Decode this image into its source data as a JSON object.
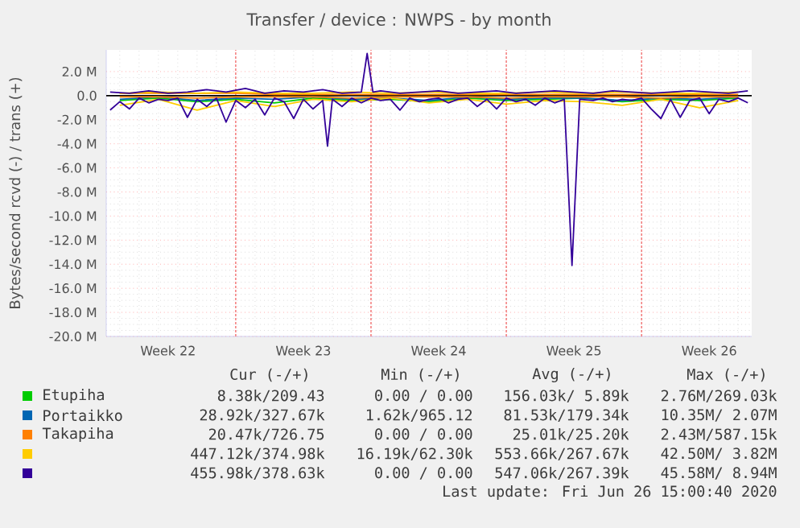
{
  "chart_data": {
    "type": "line",
    "title": "Transfer / device : NWPS - by month",
    "ylabel": "Bytes/second rcvd (-) / trans (+)",
    "xlim": [
      "2020-05-25T07:12",
      "2020-06-27T16:48"
    ],
    "ylim": [
      -20,
      3.8
    ],
    "xticks": [
      {
        "value": "2020-05-28T12:00",
        "label": "Week 22"
      },
      {
        "value": "2020-06-01",
        "label": null
      },
      {
        "value": "2020-06-04T12:00",
        "label": "Week 23"
      },
      {
        "value": "2020-06-08",
        "label": null
      },
      {
        "value": "2020-06-11T12:00",
        "label": "Week 24"
      },
      {
        "value": "2020-06-15",
        "label": null
      },
      {
        "value": "2020-06-18T12:00",
        "label": "Week 25"
      },
      {
        "value": "2020-06-22",
        "label": null
      },
      {
        "value": "2020-06-25T12:00",
        "label": "Week 26"
      }
    ],
    "yticks": [
      {
        "value": 2,
        "label": "2.0 M"
      },
      {
        "value": 0,
        "label": "0.0"
      },
      {
        "value": -2,
        "label": "-2.0 M"
      },
      {
        "value": -4,
        "label": "-4.0 M"
      },
      {
        "value": -6,
        "label": "-6.0 M"
      },
      {
        "value": -8,
        "label": "-8.0 M"
      },
      {
        "value": -10,
        "label": "-10.0 M"
      },
      {
        "value": -12,
        "label": "-12.0 M"
      },
      {
        "value": -14,
        "label": "-14.0 M"
      },
      {
        "value": -16,
        "label": "-16.0 M"
      },
      {
        "value": -18,
        "label": "-18.0 M"
      },
      {
        "value": -20,
        "label": "-20.0 M"
      }
    ],
    "grid": true,
    "legend": "bottom",
    "marker": "none",
    "line_style": "solid",
    "x": [
      "2020-05-26",
      "2020-05-28",
      "2020-05-30",
      "2020-06-01",
      "2020-06-03",
      "2020-06-05",
      "2020-06-07",
      "2020-06-09",
      "2020-06-11",
      "2020-06-13",
      "2020-06-15",
      "2020-06-17",
      "2020-06-19",
      "2020-06-21",
      "2020-06-23",
      "2020-06-25",
      "2020-06-27"
    ],
    "series": [
      {
        "name": "Etupiha",
        "color": "#00cc00",
        "values": [
          -0.4,
          -0.2,
          -0.5,
          -0.3,
          -0.6,
          -0.2,
          -0.4,
          -0.3,
          -0.5,
          -0.2,
          -0.4,
          -0.3,
          -0.2,
          -0.5,
          -0.3,
          -0.4,
          -0.2
        ]
      },
      {
        "name": "Portaikko",
        "color": "#0066b3",
        "values": [
          -0.3,
          -0.1,
          -0.4,
          -0.2,
          -0.3,
          -0.1,
          -0.3,
          -0.2,
          -0.4,
          -0.1,
          -0.3,
          -0.2,
          -0.2,
          -0.4,
          -0.2,
          -0.3,
          -0.1
        ]
      },
      {
        "name": "Takapiha",
        "color": "#ff8000",
        "values": [
          -0.1,
          -0.1,
          -0.2,
          -0.1,
          -0.1,
          -0.1,
          -0.2,
          -0.1,
          -0.1,
          -0.1,
          -0.2,
          -0.1,
          -0.1,
          -0.1,
          -0.2,
          -0.1,
          -0.1
        ]
      },
      {
        "color": "#ffcc00",
        "values": [
          -0.8,
          -0.3,
          -1.2,
          -0.4,
          -0.9,
          -0.3,
          -0.5,
          -0.2,
          -0.6,
          -0.3,
          -0.7,
          -0.4,
          -0.5,
          -0.8,
          -0.3,
          -1.0,
          -0.4
        ]
      },
      {
        "color": "#330099",
        "x": [
          "2020-05-25T12:00",
          "2020-05-26",
          "2020-05-26T12:00",
          "2020-05-27",
          "2020-05-27T12:00",
          "2020-05-28",
          "2020-05-28T12:00",
          "2020-05-29",
          "2020-05-29T12:00",
          "2020-05-30",
          "2020-05-30T12:00",
          "2020-05-31",
          "2020-05-31T12:00",
          "2020-06-01",
          "2020-06-01T12:00",
          "2020-06-02",
          "2020-06-02T12:00",
          "2020-06-03",
          "2020-06-03T12:00",
          "2020-06-04",
          "2020-06-04T12:00",
          "2020-06-05",
          "2020-06-05T12:00",
          "2020-06-05T18:00",
          "2020-06-06",
          "2020-06-06T12:00",
          "2020-06-07",
          "2020-06-07T12:00",
          "2020-06-08",
          "2020-06-08T12:00",
          "2020-06-09",
          "2020-06-09T12:00",
          "2020-06-10",
          "2020-06-10T12:00",
          "2020-06-11",
          "2020-06-11T12:00",
          "2020-06-12",
          "2020-06-12T12:00",
          "2020-06-13",
          "2020-06-13T12:00",
          "2020-06-14",
          "2020-06-14T12:00",
          "2020-06-15",
          "2020-06-15T12:00",
          "2020-06-16",
          "2020-06-16T12:00",
          "2020-06-17",
          "2020-06-17T12:00",
          "2020-06-18",
          "2020-06-18T09:36",
          "2020-06-18T19:12",
          "2020-06-19T12:00",
          "2020-06-20",
          "2020-06-20T12:00",
          "2020-06-21",
          "2020-06-21T12:00",
          "2020-06-22",
          "2020-06-22T12:00",
          "2020-06-23",
          "2020-06-23T12:00",
          "2020-06-24",
          "2020-06-24T12:00",
          "2020-06-25",
          "2020-06-25T12:00",
          "2020-06-26",
          "2020-06-26T12:00",
          "2020-06-27",
          "2020-06-27T12:00"
        ],
        "values": [
          -1.2,
          -0.5,
          -1.1,
          -0.2,
          -0.6,
          -0.3,
          -0.4,
          -0.2,
          -1.8,
          -0.3,
          -0.9,
          -0.2,
          -2.2,
          -0.4,
          -1.0,
          -0.3,
          -1.6,
          -0.2,
          -0.5,
          -1.9,
          -0.3,
          -1.1,
          -0.4,
          -4.2,
          -0.3,
          -0.9,
          -0.2,
          -0.6,
          -0.2,
          -0.4,
          -0.3,
          -1.2,
          -0.2,
          -0.5,
          -0.3,
          -0.2,
          -0.6,
          -0.3,
          -0.2,
          -0.9,
          -0.3,
          -1.1,
          -0.2,
          -0.5,
          -0.3,
          -0.8,
          -0.2,
          -0.6,
          -0.3,
          -14.1,
          -0.3,
          -0.4,
          -0.2,
          -0.5,
          -0.3,
          -0.4,
          -0.2,
          -1.1,
          -1.9,
          -0.3,
          -1.8,
          -0.4,
          -0.2,
          -1.5,
          -0.3,
          -0.5,
          -0.2,
          -0.6
        ]
      },
      {
        "color": "#ff8000",
        "values": [
          0.2,
          0.2,
          0.2,
          0.2,
          0.1,
          0.1,
          0.1,
          0.1,
          0.1,
          0.1,
          0.1,
          0.1,
          0.1,
          0.1,
          0.1,
          0.1,
          0.1
        ]
      },
      {
        "color": "#ffcc00",
        "values": [
          0.2,
          0.3,
          0.2,
          0.3,
          0.2,
          0.2,
          0.3,
          0.2,
          0.3,
          0.2,
          0.2,
          0.3,
          0.2,
          0.3,
          0.2,
          0.2,
          0.3
        ]
      },
      {
        "color": "#330099",
        "x": [
          "2020-05-25T12:00",
          "2020-05-26T12:00",
          "2020-05-27T12:00",
          "2020-05-28T12:00",
          "2020-05-29T12:00",
          "2020-05-30T12:00",
          "2020-05-31T12:00",
          "2020-06-01T12:00",
          "2020-06-02T12:00",
          "2020-06-03T12:00",
          "2020-06-04T12:00",
          "2020-06-05T12:00",
          "2020-06-06T12:00",
          "2020-06-07T12:00",
          "2020-06-07T19:12",
          "2020-06-08T02:24",
          "2020-06-08T12:00",
          "2020-06-09T12:00",
          "2020-06-10T12:00",
          "2020-06-11T12:00",
          "2020-06-12T12:00",
          "2020-06-13T12:00",
          "2020-06-14T12:00",
          "2020-06-15T12:00",
          "2020-06-16T12:00",
          "2020-06-17T12:00",
          "2020-06-18T12:00",
          "2020-06-19T12:00",
          "2020-06-20T12:00",
          "2020-06-21T12:00",
          "2020-06-22T12:00",
          "2020-06-23T12:00",
          "2020-06-24T12:00",
          "2020-06-25T12:00",
          "2020-06-26T12:00",
          "2020-06-27T12:00"
        ],
        "values": [
          0.3,
          0.2,
          0.4,
          0.2,
          0.3,
          0.5,
          0.3,
          0.6,
          0.2,
          0.4,
          0.3,
          0.5,
          0.2,
          0.3,
          3.5,
          0.3,
          0.4,
          0.2,
          0.3,
          0.4,
          0.2,
          0.3,
          0.4,
          0.2,
          0.3,
          0.4,
          0.3,
          0.2,
          0.4,
          0.3,
          0.2,
          0.3,
          0.4,
          0.3,
          0.2,
          0.4
        ]
      }
    ],
    "ref_lines": [
      {
        "axis": "y",
        "value": 0,
        "color": "#000000"
      }
    ],
    "annotations": [
      "Cur (-/+)",
      "Min (-/+)",
      "Avg (-/+)",
      "Max (-/+)",
      "8.38k/209.43",
      "0.00 / 0.00",
      "156.03k/ 5.89k",
      "2.76M/269.03k",
      "28.92k/327.67k",
      "1.62k/965.12",
      "81.53k/179.34k",
      "10.35M/ 2.07M",
      "20.47k/726.75",
      "0.00 / 0.00",
      "25.01k/25.20k",
      "2.43M/587.15k",
      "447.12k/374.98k",
      "16.19k/62.30k",
      "553.66k/267.67k",
      "42.50M/ 3.82M",
      "455.98k/378.63k",
      "0.00 / 0.00",
      "547.06k/267.39k",
      "45.58M/ 8.94M",
      "Last update: Fri Jun 26 15:00:40 2020"
    ]
  }
}
